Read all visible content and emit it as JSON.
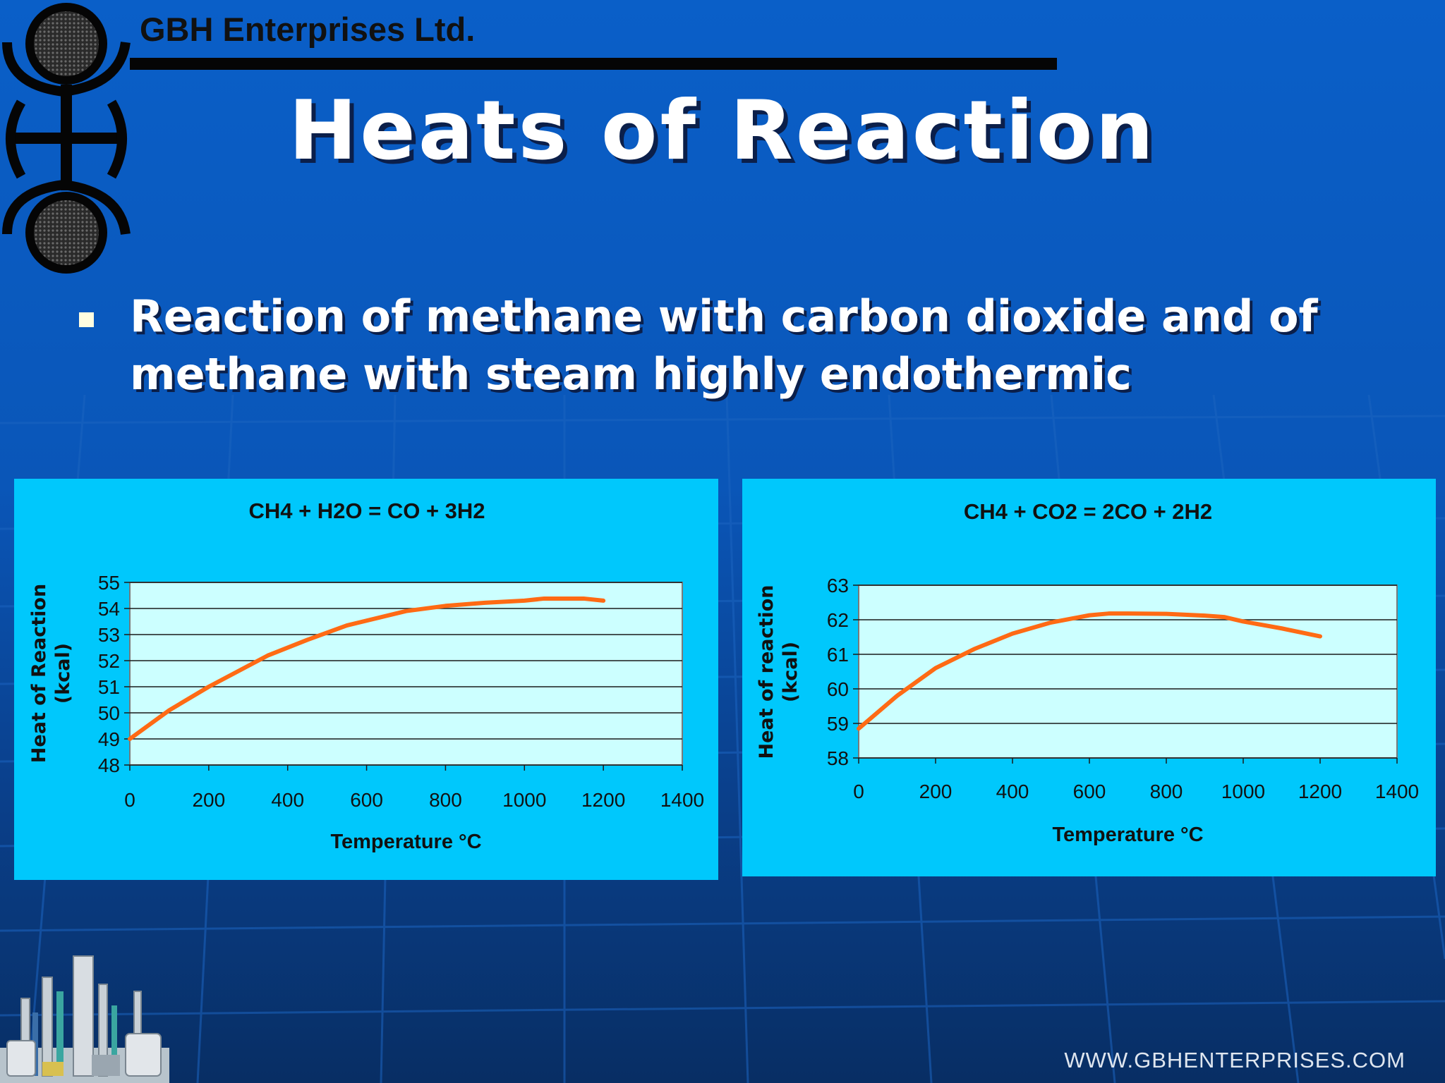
{
  "company_name": "GBH Enterprises Ltd.",
  "slide_title": "Heats of Reaction",
  "bullet_text": "Reaction of methane with carbon dioxide and of methane with steam highly endothermic",
  "footer_url": "WWW.GBHENTERPRISES.COM",
  "colors": {
    "background": "#0a56b8",
    "panel": "#00c8fc",
    "plot_area": "#ccffff",
    "series_line": "#ff6a14",
    "logo": "#050505"
  },
  "icons": {
    "logo": "gbh-logo-icon",
    "plant": "industrial-plant-icon"
  },
  "chart_data": [
    {
      "type": "line",
      "title": "CH4 + H2O = CO + 3H2",
      "xlabel": "Temperature °C",
      "ylabel": "Heat of Reaction (kcal)",
      "xlim": [
        0,
        1400
      ],
      "ylim": [
        48,
        55
      ],
      "x_ticks": [
        0,
        200,
        400,
        600,
        800,
        1000,
        1200,
        1400
      ],
      "y_ticks": [
        48,
        49,
        50,
        51,
        52,
        53,
        54,
        55
      ],
      "grid": true,
      "legend": "none",
      "series": [
        {
          "x": [
            0,
            100,
            200,
            300,
            350,
            450,
            550,
            700,
            800,
            900,
            1000,
            1050,
            1150,
            1200
          ],
          "y": [
            49.0,
            50.1,
            51.0,
            51.8,
            52.2,
            52.8,
            53.35,
            53.9,
            54.1,
            54.22,
            54.3,
            54.38,
            54.38,
            54.3
          ]
        }
      ]
    },
    {
      "type": "line",
      "title": "CH4 + CO2 = 2CO + 2H2",
      "xlabel": "Temperature °C",
      "ylabel": "Heat of reaction (kcal)",
      "xlim": [
        0,
        1400
      ],
      "ylim": [
        58,
        63
      ],
      "x_ticks": [
        0,
        200,
        400,
        600,
        800,
        1000,
        1200,
        1400
      ],
      "y_ticks": [
        58,
        59,
        60,
        61,
        62,
        63
      ],
      "grid": true,
      "legend": "none",
      "series": [
        {
          "x": [
            0,
            100,
            200,
            300,
            400,
            500,
            600,
            650,
            700,
            800,
            900,
            950,
            1000,
            1100,
            1200
          ],
          "y": [
            58.85,
            59.8,
            60.6,
            61.15,
            61.6,
            61.92,
            62.13,
            62.18,
            62.18,
            62.17,
            62.12,
            62.08,
            61.95,
            61.75,
            61.52
          ]
        }
      ]
    }
  ]
}
